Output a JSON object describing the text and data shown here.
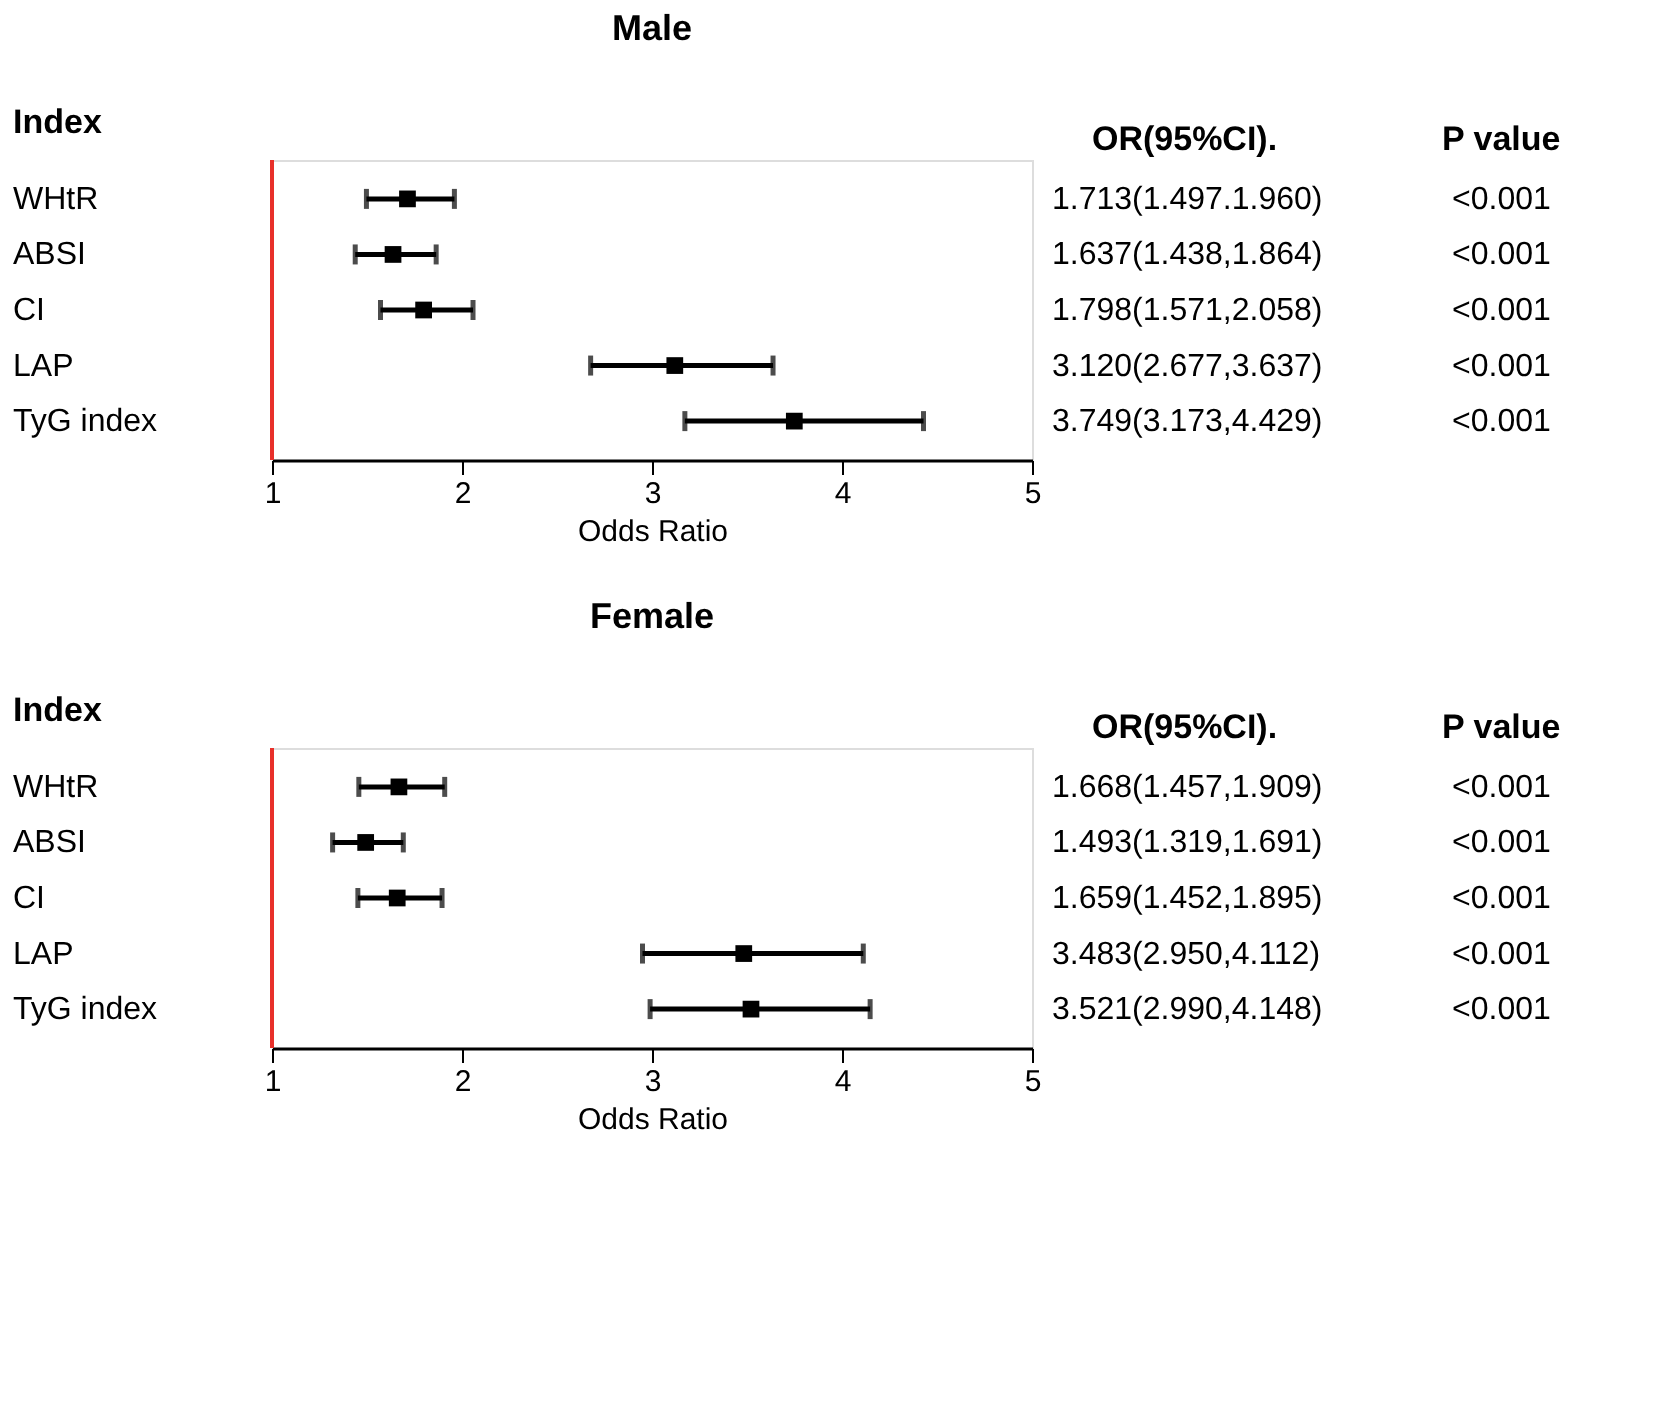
{
  "chart_data": [
    {
      "type": "scatter",
      "title": "Male",
      "xlabel": "Odds Ratio",
      "ylabel": "Index",
      "orientation": "horizontal",
      "marker": "square",
      "color": "#000000",
      "grid": false,
      "categories": [
        "WHtR",
        "ABSI",
        "CI",
        "LAP",
        "TyG index"
      ],
      "values": [
        1.713,
        1.637,
        1.798,
        3.12,
        3.749
      ],
      "errors": [
        [
          1.497,
          1.96
        ],
        [
          1.438,
          1.864
        ],
        [
          1.571,
          2.058
        ],
        [
          2.677,
          3.637
        ],
        [
          3.173,
          4.429
        ]
      ],
      "value_labels": [
        "1.713(1.497.1.960)",
        "1.637(1.438,1.864)",
        "1.798(1.571,2.058)",
        "3.120(2.677,3.637)",
        "3.749(3.173,4.429)"
      ],
      "xlim": [
        1,
        5
      ],
      "xticks": [
        1,
        2,
        3,
        4,
        5
      ],
      "ref_lines": [
        {
          "axis": "x",
          "value": 1,
          "color": "#e8302a"
        }
      ],
      "annotations": [
        "OR(95%CI).",
        "P value",
        "<0.001",
        "<0.001",
        "<0.001",
        "<0.001",
        "<0.001"
      ]
    },
    {
      "type": "scatter",
      "title": "Female",
      "xlabel": "Odds Ratio",
      "ylabel": "Index",
      "orientation": "horizontal",
      "marker": "square",
      "color": "#000000",
      "grid": false,
      "categories": [
        "WHtR",
        "ABSI",
        "CI",
        "LAP",
        "TyG index"
      ],
      "values": [
        1.668,
        1.493,
        1.659,
        3.483,
        3.521
      ],
      "errors": [
        [
          1.457,
          1.909
        ],
        [
          1.319,
          1.691
        ],
        [
          1.452,
          1.895
        ],
        [
          2.95,
          4.112
        ],
        [
          2.99,
          4.148
        ]
      ],
      "value_labels": [
        "1.668(1.457,1.909)",
        "1.493(1.319,1.691)",
        "1.659(1.452,1.895)",
        "3.483(2.950,4.112)",
        "3.521(2.990,4.148)"
      ],
      "xlim": [
        1,
        5
      ],
      "xticks": [
        1,
        2,
        3,
        4,
        5
      ],
      "ref_lines": [
        {
          "axis": "x",
          "value": 1,
          "color": "#e8302a"
        }
      ],
      "annotations": [
        "OR(95%CI).",
        "P value",
        "<0.001",
        "<0.001",
        "<0.001",
        "<0.001",
        "<0.001"
      ]
    }
  ]
}
